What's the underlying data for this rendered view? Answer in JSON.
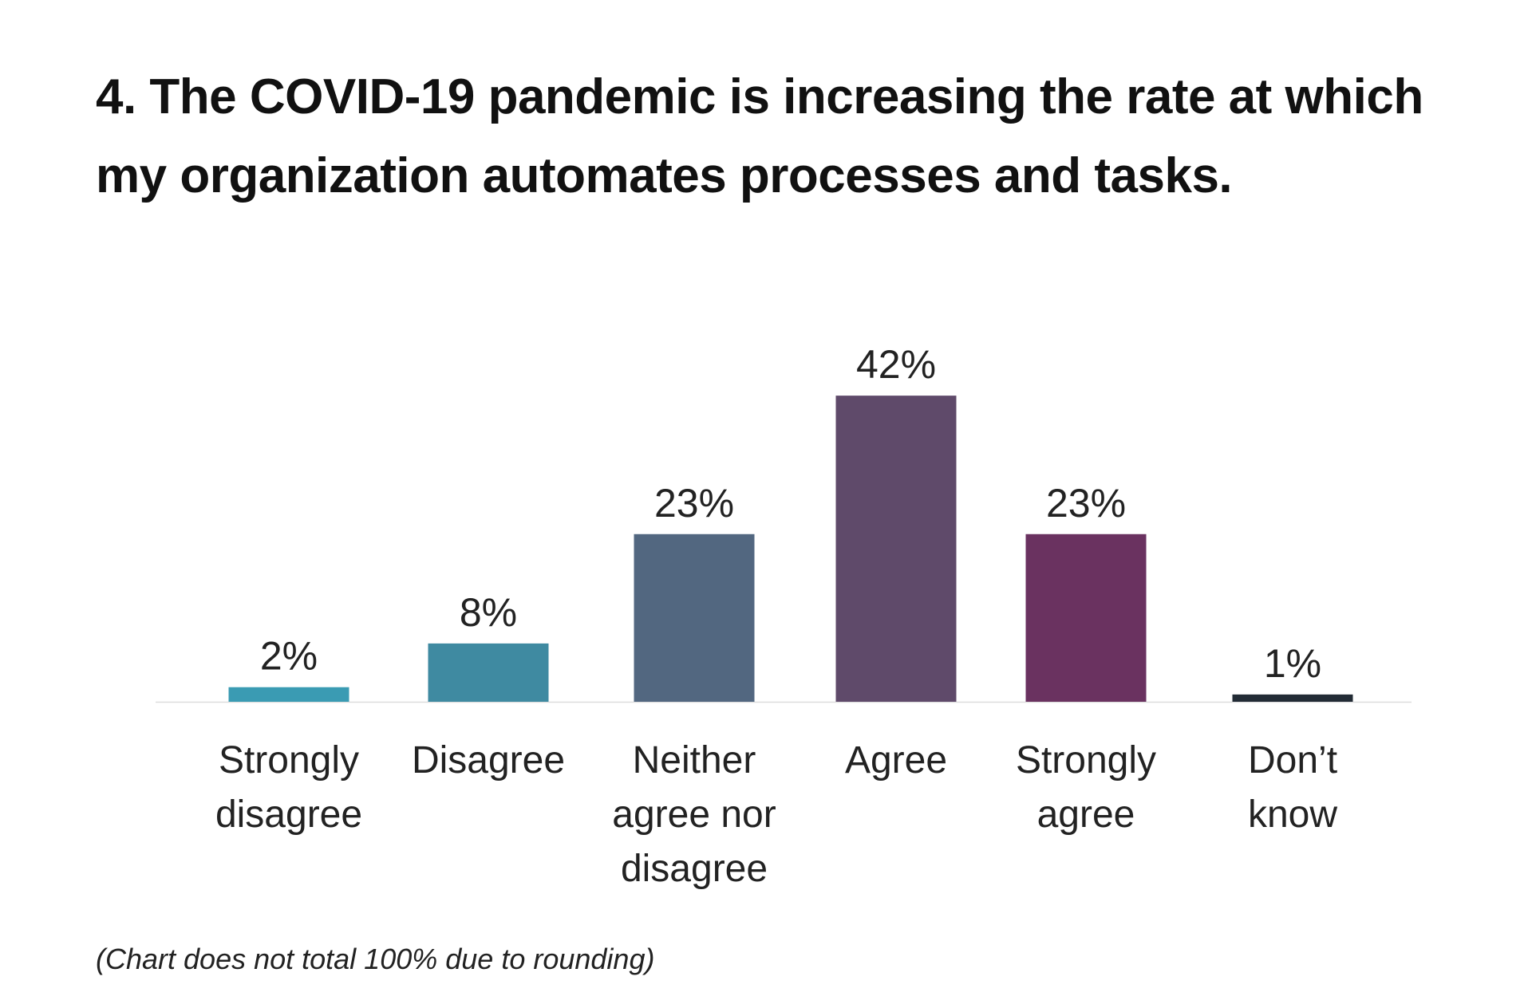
{
  "chart_data": {
    "type": "bar",
    "title": "4. The COVID-19 pandemic is increasing the rate at which my organization automates processes and tasks.",
    "categories": [
      "Strongly disagree",
      "Disagree",
      "Neither agree nor disagree",
      "Agree",
      "Strongly agree",
      "Don’t know"
    ],
    "values": [
      2,
      8,
      23,
      42,
      23,
      1
    ],
    "value_labels": [
      "2%",
      "8%",
      "23%",
      "42%",
      "23%",
      "1%"
    ],
    "colors": [
      "#3a9bb3",
      "#3f8aa1",
      "#526780",
      "#5f4a6a",
      "#6a3260",
      "#222b35"
    ],
    "note": "(Chart does not total 100% due to rounding)"
  }
}
